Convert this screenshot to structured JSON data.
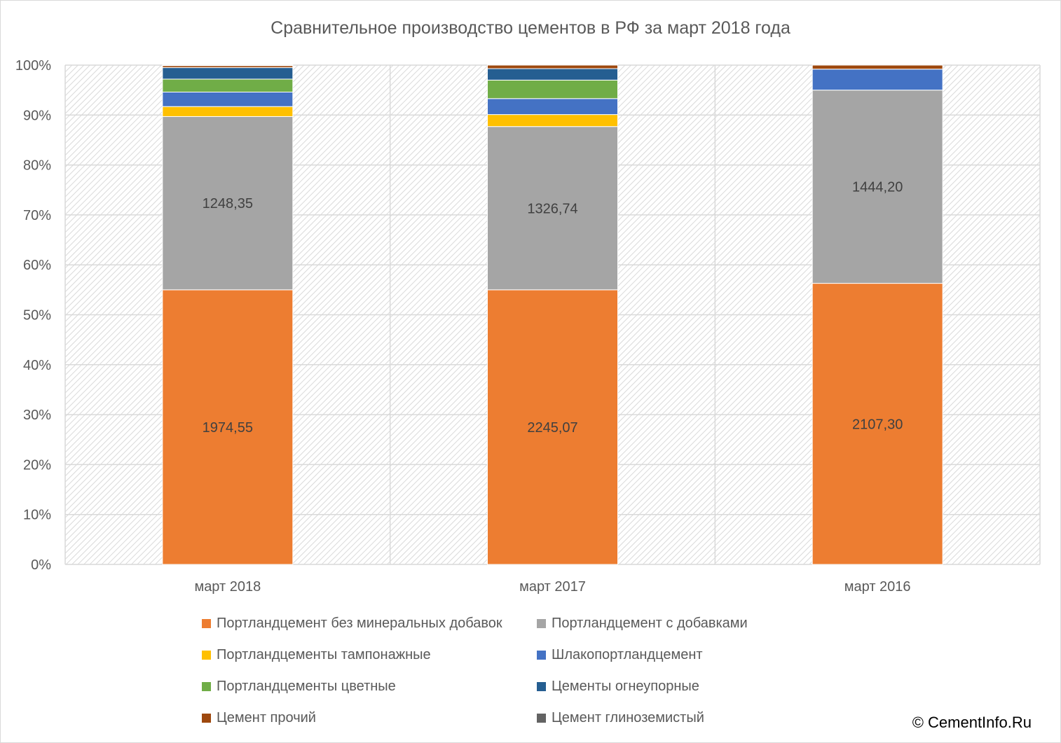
{
  "chart_data": {
    "type": "bar",
    "stacked": "percent",
    "title": "Сравнительное производство цементов в РФ за март 2018 года",
    "categories": [
      "март 2018",
      "март 2017",
      "март 2016"
    ],
    "yticks": [
      "0%",
      "10%",
      "20%",
      "30%",
      "40%",
      "50%",
      "60%",
      "70%",
      "80%",
      "90%",
      "100%"
    ],
    "ylim": [
      0,
      100
    ],
    "grid": true,
    "legend_position": "bottom",
    "series": [
      {
        "name": "Портландцемент без минеральных добавок",
        "color": "#ed7d31",
        "percent": [
          55.0,
          55.0,
          56.3
        ],
        "labels": [
          "1974,55",
          "2245,07",
          "2107,30"
        ]
      },
      {
        "name": "Портландцемент с добавками",
        "color": "#a5a5a5",
        "percent": [
          34.7,
          32.7,
          38.7
        ],
        "labels": [
          "1248,35",
          "1326,74",
          "1444,20"
        ]
      },
      {
        "name": "Портландцементы тампонажные",
        "color": "#ffc000",
        "percent": [
          2.0,
          2.4,
          0.0
        ],
        "labels": [
          "",
          "",
          ""
        ]
      },
      {
        "name": "Шлакопортландцемент",
        "color": "#4472c4",
        "percent": [
          2.9,
          3.2,
          4.2
        ],
        "labels": [
          "",
          "",
          ""
        ]
      },
      {
        "name": "Портландцементы цветные",
        "color": "#70ad47",
        "percent": [
          2.6,
          3.7,
          0.0
        ],
        "labels": [
          "",
          "",
          ""
        ]
      },
      {
        "name": "Цементы огнеупорные",
        "color": "#255e91",
        "percent": [
          2.3,
          2.3,
          0.0
        ],
        "labels": [
          "",
          "",
          ""
        ]
      },
      {
        "name": "Цемент прочий",
        "color": "#9e480e",
        "percent": [
          0.4,
          0.7,
          0.8
        ],
        "labels": [
          "",
          "",
          ""
        ]
      },
      {
        "name": "Цемент глиноземистый",
        "color": "#636363",
        "percent": [
          0.1,
          0.0,
          0.0
        ],
        "labels": [
          "",
          "",
          ""
        ]
      }
    ]
  },
  "watermark": "© CementInfo.Ru"
}
